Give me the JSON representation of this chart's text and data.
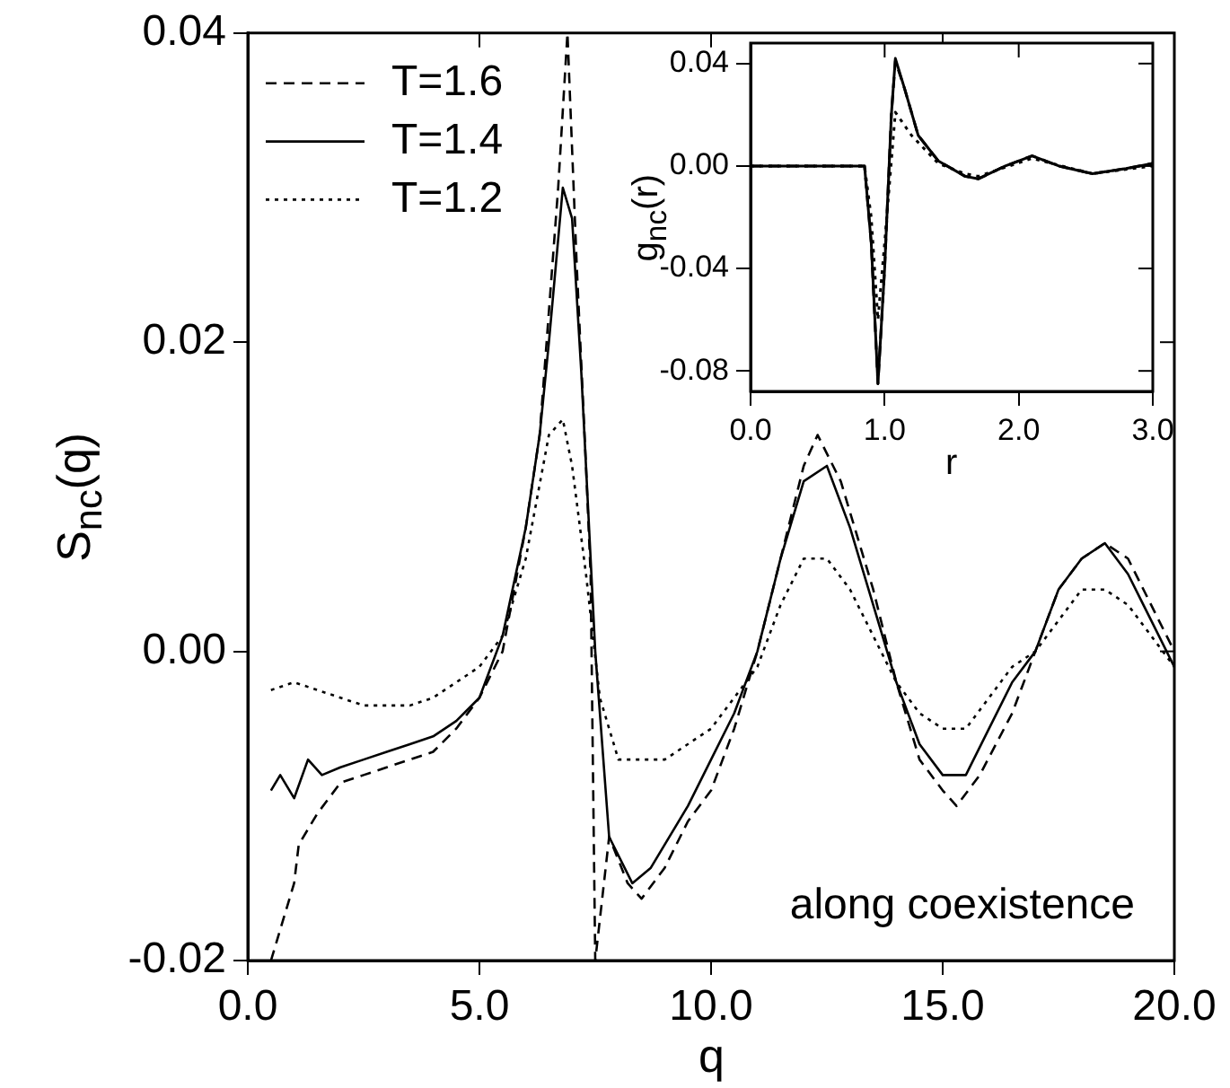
{
  "chart_data": [
    {
      "type": "line",
      "xlabel": "q",
      "ylabel": "S$_{nc}$(q)",
      "xlim": [
        0,
        20
      ],
      "ylim": [
        -0.02,
        0.04
      ],
      "xticks": [
        {
          "value": 0,
          "label": "0.0"
        },
        {
          "value": 5,
          "label": "5.0"
        },
        {
          "value": 10,
          "label": "10.0"
        },
        {
          "value": 15,
          "label": "15.0"
        },
        {
          "value": 20,
          "label": "20.0"
        }
      ],
      "yticks": [
        -0.02,
        {
          "value": 0,
          "label": "0.00"
        },
        0.02,
        0.04
      ],
      "legend": "top left",
      "annotations": [
        "along coexistence"
      ],
      "series": [
        {
          "name": "T=1.6",
          "color": "#000000",
          "line_style": "dashed",
          "x": [
            0.5,
            0.8,
            1.0,
            1.1,
            1.5,
            2,
            2.5,
            3,
            3.5,
            4,
            4.5,
            5,
            5.5,
            6,
            6.3,
            6.5,
            6.7,
            6.9,
            7.1,
            7.3,
            7.4,
            7.5,
            7.8,
            8.2,
            8.5,
            9,
            9.5,
            10,
            10.5,
            11,
            11.5,
            12,
            12.3,
            12.8,
            13.5,
            14,
            14.5,
            15,
            15.3,
            15.8,
            16.5,
            17,
            17.5,
            18,
            18.5,
            19,
            19.5,
            20
          ],
          "values": [
            -0.02,
            -0.017,
            -0.015,
            -0.0125,
            -0.0105,
            -0.0085,
            -0.008,
            -0.0075,
            -0.007,
            -0.0065,
            -0.005,
            -0.003,
            0.0,
            0.008,
            0.014,
            0.022,
            0.03,
            0.04,
            0.025,
            0.012,
            0.005,
            -0.02,
            -0.012,
            -0.015,
            -0.016,
            -0.014,
            -0.011,
            -0.009,
            -0.005,
            0.0,
            0.006,
            0.012,
            0.014,
            0.011,
            0.004,
            -0.002,
            -0.007,
            -0.009,
            -0.01,
            -0.008,
            -0.004,
            0.0,
            0.004,
            0.006,
            0.007,
            0.006,
            0.003,
            0.0
          ]
        },
        {
          "name": "T=1.4",
          "color": "#000000",
          "line_style": "solid",
          "x": [
            0.5,
            0.7,
            1.0,
            1.3,
            1.6,
            2,
            2.5,
            3,
            3.5,
            4,
            4.5,
            5,
            5.5,
            6,
            6.3,
            6.5,
            6.8,
            7.0,
            7.2,
            7.5,
            7.8,
            8.3,
            8.7,
            9.5,
            10,
            10.5,
            11,
            11.5,
            12,
            12.5,
            13,
            13.5,
            14,
            14.5,
            15,
            15.5,
            16,
            16.5,
            17,
            17.5,
            18,
            18.5,
            19,
            19.5,
            20
          ],
          "values": [
            -0.009,
            -0.008,
            -0.0095,
            -0.007,
            -0.008,
            -0.0075,
            -0.007,
            -0.0065,
            -0.006,
            -0.0055,
            -0.0045,
            -0.003,
            0.001,
            0.008,
            0.014,
            0.02,
            0.03,
            0.028,
            0.018,
            0.0,
            -0.012,
            -0.015,
            -0.014,
            -0.01,
            -0.007,
            -0.004,
            0.0,
            0.006,
            0.011,
            0.012,
            0.008,
            0.003,
            -0.002,
            -0.006,
            -0.008,
            -0.008,
            -0.005,
            -0.002,
            0.0,
            0.004,
            0.006,
            0.007,
            0.005,
            0.002,
            -0.001
          ]
        },
        {
          "name": "T=1.2",
          "color": "#000000",
          "line_style": "dotted",
          "x": [
            0.5,
            1,
            1.5,
            2,
            2.5,
            3,
            3.5,
            4,
            4.5,
            5,
            5.5,
            6,
            6.5,
            6.8,
            7.0,
            7.3,
            7.6,
            8,
            9,
            10,
            10.5,
            11,
            11.5,
            12,
            12.5,
            13,
            13.5,
            14,
            14.5,
            15,
            15.5,
            16,
            16.5,
            17,
            17.5,
            18,
            18.5,
            19,
            19.5,
            20
          ],
          "values": [
            -0.0025,
            -0.002,
            -0.0025,
            -0.003,
            -0.0035,
            -0.0035,
            -0.0035,
            -0.003,
            -0.002,
            -0.001,
            0.001,
            0.006,
            0.014,
            0.015,
            0.012,
            0.005,
            -0.003,
            -0.007,
            -0.007,
            -0.005,
            -0.003,
            -0.001,
            0.003,
            0.006,
            0.006,
            0.004,
            0.001,
            -0.002,
            -0.004,
            -0.005,
            -0.005,
            -0.003,
            -0.001,
            0.0,
            0.002,
            0.004,
            0.004,
            0.003,
            0.001,
            -0.001
          ]
        }
      ]
    },
    {
      "type": "line",
      "xlabel": "r",
      "ylabel": "g$_{nc}$(r)",
      "xlim": [
        0,
        3
      ],
      "ylim": [
        -0.088,
        0.048
      ],
      "xticks": [
        {
          "value": 0,
          "label": "0.0"
        },
        {
          "value": 1,
          "label": "1.0"
        },
        {
          "value": 2,
          "label": "2.0"
        },
        {
          "value": 3,
          "label": "3.0"
        }
      ],
      "yticks": [
        -0.08,
        -0.04,
        {
          "value": 0,
          "label": "0.00"
        },
        0.04
      ],
      "series": [
        {
          "color": "#000000",
          "line_style": "dashed",
          "x": [
            0,
            0.85,
            0.9,
            0.95,
            1.0,
            1.05,
            1.08,
            1.15,
            1.25,
            1.4,
            1.6,
            1.7,
            1.9,
            2.1,
            2.3,
            2.55,
            2.8,
            3.0
          ],
          "values": [
            0,
            0,
            -0.03,
            -0.085,
            -0.04,
            0.02,
            0.041,
            0.03,
            0.012,
            0.002,
            -0.004,
            -0.005,
            0.0,
            0.004,
            0.0,
            -0.003,
            -0.001,
            0.001
          ]
        },
        {
          "color": "#000000",
          "line_style": "solid",
          "x": [
            0,
            0.85,
            0.9,
            0.95,
            1.0,
            1.05,
            1.08,
            1.15,
            1.25,
            1.4,
            1.6,
            1.7,
            1.9,
            2.1,
            2.3,
            2.55,
            2.8,
            3.0
          ],
          "values": [
            0,
            0,
            -0.03,
            -0.085,
            -0.04,
            0.02,
            0.042,
            0.03,
            0.012,
            0.002,
            -0.004,
            -0.005,
            0.0,
            0.004,
            0.0,
            -0.003,
            -0.001,
            0.001
          ]
        },
        {
          "color": "#000000",
          "line_style": "dotted",
          "x": [
            0,
            0.85,
            0.9,
            0.95,
            1.0,
            1.08,
            1.2,
            1.4,
            1.6,
            1.7,
            2.1,
            2.55,
            3.0
          ],
          "values": [
            0,
            0,
            -0.02,
            -0.06,
            -0.03,
            0.021,
            0.012,
            0.001,
            -0.003,
            -0.004,
            0.003,
            -0.003,
            0.0
          ]
        }
      ]
    }
  ]
}
